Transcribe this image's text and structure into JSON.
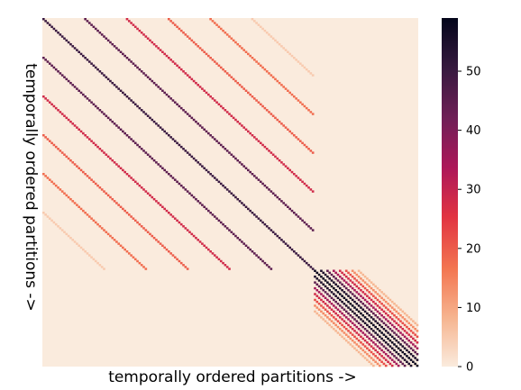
{
  "chart_data": {
    "type": "heatmap",
    "xlabel": "temporally ordered partitions ->",
    "ylabel": "temporally ordered partitions ->",
    "colorbar": {
      "min": 0,
      "max": 59,
      "ticks": [
        0,
        10,
        20,
        30,
        40,
        50
      ]
    },
    "x_ticks_shown": false,
    "y_ticks_shown": false,
    "matrix_size": 180,
    "blocks": [
      {
        "name": "",
        "range": [
          0,
          130
        ],
        "diagonals": [
          {
            "offset": 0,
            "value": 50
          },
          {
            "offset": 20,
            "value": 45
          },
          {
            "offset": 40,
            "value": 28
          },
          {
            "offset": 60,
            "value": 20
          },
          {
            "offset": 80,
            "value": 18
          },
          {
            "offset": 100,
            "value": 5
          }
        ]
      },
      {
        "name": "",
        "range": [
          130,
          180
        ],
        "diagonals": [
          {
            "offset": 0,
            "value": 58
          },
          {
            "offset": 3,
            "value": 55
          },
          {
            "offset": 6,
            "value": 45
          },
          {
            "offset": 9,
            "value": 35
          },
          {
            "offset": 12,
            "value": 28
          },
          {
            "offset": 15,
            "value": 22
          },
          {
            "offset": 18,
            "value": 14
          },
          {
            "offset": 21,
            "value": 8
          }
        ]
      }
    ],
    "colormap": [
      "#faebdd",
      "#f6b48f",
      "#f37651",
      "#e13342",
      "#ad1759",
      "#701f57",
      "#35193e",
      "#03051a"
    ]
  }
}
